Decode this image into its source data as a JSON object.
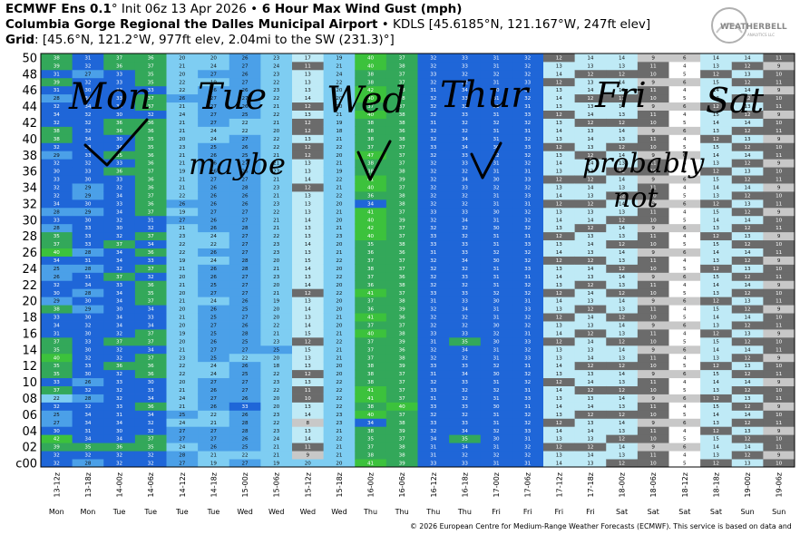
{
  "header": {
    "line1_model": "ECMWF Ens 0.1",
    "line1_deg": "°",
    "line1_init": " Init 06z 13 Apr 2026 ",
    "line1_sep": "•",
    "line1_product": " 6 Hour Max Wind Gust (mph)",
    "line2_site": "Columbia Gorge Regional the Dalles Municipal Airport",
    "line2_rest": " • KDLS [45.6185°N, 121.167°W, 247ft elev]",
    "line3_label": "Grid",
    "line3_rest": ": [45.6°N, 121.2°W, 977ft elev, 2.04mi to the SW (231.3)°]"
  },
  "logo": {
    "text1": "WEATHERBELL",
    "text2": "ANALYTICS LLC"
  },
  "footer": "© 2026 European Centre for Medium-Range Weather Forecasts (ECMWF). This service is based on data and",
  "annotations": {
    "days": [
      "Mon",
      "Tue",
      "Wed",
      "Thur",
      "Fri",
      "Sat"
    ],
    "notes": [
      "maybe",
      "probably",
      "not"
    ]
  },
  "colors": {
    "white": "#ffffff",
    "light_gray": "#c8c8c8",
    "dark_gray": "#6b6b6b",
    "very_light_blue": "#bfeaf6",
    "light_blue": "#7ecdf2",
    "blue": "#4ba0e8",
    "strong_blue": "#1f66d8",
    "green": "#33a85a",
    "bright_green": "#3cc23c",
    "ink": "#000000"
  },
  "chart_data": {
    "type": "heatmap",
    "y_ticks": [
      "50",
      "48",
      "46",
      "44",
      "42",
      "40",
      "38",
      "36",
      "34",
      "32",
      "30",
      "28",
      "26",
      "24",
      "22",
      "20",
      "18",
      "16",
      "14",
      "12",
      "10",
      "08",
      "06",
      "04",
      "02",
      "c00"
    ],
    "x_times": [
      "13-12z",
      "13-18z",
      "14-00z",
      "14-06z",
      "14-12z",
      "14-18z",
      "15-00z",
      "15-06z",
      "15-12z",
      "15-18z",
      "16-00z",
      "16-06z",
      "16-12z",
      "16-18z",
      "17-00z",
      "17-06z",
      "17-12z",
      "17-18z",
      "18-00z",
      "18-06z",
      "18-12z",
      "18-18z",
      "19-00z",
      "19-06z"
    ],
    "x_days": [
      "Mon",
      "Mon",
      "Tue",
      "Tue",
      "Tue",
      "Tue",
      "Wed",
      "Wed",
      "Wed",
      "Wed",
      "Thu",
      "Thu",
      "Thu",
      "Thu",
      "Fri",
      "Fri",
      "Fri",
      "Fri",
      "Sat",
      "Sat",
      "Sat",
      "Sat",
      "Sun",
      "Sun"
    ],
    "members": 51,
    "rows_note": "Rows are ensemble members c00 (bottom) to 50 (top); values in mph as printed in each cell.",
    "values_by_time": [
      [
        32,
        32,
        39,
        42,
        30,
        27,
        25,
        32,
        22,
        37,
        33,
        35,
        35,
        40,
        35,
        37,
        31,
        34,
        33,
        38,
        29,
        30,
        32,
        26,
        25,
        34,
        40,
        37,
        35,
        28,
        33,
        28,
        34,
        32,
        32,
        33,
        30,
        32,
        29,
        32,
        38,
        38,
        32,
        34,
        32,
        28,
        31,
        39,
        31,
        39,
        38
      ],
      [
        28,
        32,
        35,
        34,
        31,
        34,
        34,
        32,
        28,
        32,
        26,
        30,
        33,
        32,
        30,
        33,
        30,
        32,
        30,
        29,
        30,
        28,
        34,
        31,
        28,
        31,
        28,
        33,
        33,
        33,
        30,
        29,
        30,
        29,
        29,
        30,
        33,
        32,
        33,
        33,
        34,
        32,
        32,
        32,
        34,
        34,
        30,
        32,
        27,
        32,
        31
      ],
      [
        32,
        32,
        36,
        34,
        30,
        34,
        31,
        33,
        32,
        32,
        33,
        32,
        36,
        32,
        32,
        37,
        32,
        34,
        34,
        30,
        34,
        34,
        33,
        37,
        32,
        34,
        34,
        37,
        32,
        30,
        32,
        34,
        33,
        34,
        32,
        33,
        36,
        33,
        35,
        34,
        30,
        36,
        36,
        30,
        34,
        33,
        33,
        33,
        33,
        36,
        37
      ],
      [
        32,
        32,
        35,
        37,
        32,
        32,
        34,
        36,
        34,
        33,
        30,
        36,
        36,
        37,
        34,
        37,
        37,
        34,
        33,
        34,
        37,
        35,
        36,
        32,
        37,
        33,
        36,
        34,
        37,
        32,
        31,
        37,
        36,
        37,
        36,
        36,
        37,
        36,
        36,
        35,
        35,
        36,
        36,
        32,
        37,
        37,
        33,
        35,
        35,
        37,
        36
      ],
      [
        27,
        28,
        24,
        27,
        27,
        24,
        25,
        21,
        24,
        21,
        20,
        22,
        22,
        23,
        21,
        20,
        19,
        20,
        21,
        20,
        21,
        20,
        21,
        20,
        21,
        19,
        22,
        22,
        23,
        21,
        27,
        19,
        26,
        22,
        21,
        21,
        19,
        21,
        21,
        23,
        20,
        21,
        21,
        24,
        21,
        26,
        22,
        22,
        20,
        21,
        20
      ],
      [
        19,
        21,
        26,
        27,
        27,
        21,
        22,
        26,
        27,
        26,
        27,
        24,
        24,
        25,
        27,
        26,
        25,
        27,
        25,
        26,
        24,
        27,
        25,
        26,
        26,
        24,
        26,
        22,
        24,
        26,
        26,
        27,
        26,
        26,
        26,
        27,
        26,
        26,
        26,
        25,
        24,
        24,
        27,
        27,
        27,
        27,
        26,
        19,
        27,
        24,
        20
      ],
      [
        27,
        22,
        25,
        26,
        28,
        28,
        26,
        33,
        26,
        27,
        27,
        25,
        26,
        22,
        27,
        25,
        28,
        26,
        27,
        25,
        26,
        27,
        27,
        27,
        28,
        28,
        27,
        27,
        27,
        28,
        27,
        27,
        26,
        26,
        28,
        27,
        26,
        27,
        25,
        26,
        27,
        22,
        22,
        25,
        26,
        27,
        26,
        27,
        26,
        27,
        26
      ],
      [
        19,
        21,
        21,
        24,
        23,
        22,
        23,
        20,
        20,
        22,
        23,
        22,
        18,
        20,
        25,
        23,
        21,
        22,
        20,
        20,
        19,
        21,
        20,
        23,
        21,
        20,
        23,
        23,
        22,
        21,
        21,
        22,
        23,
        21,
        23,
        21,
        23,
        21,
        21,
        22,
        22,
        20,
        21,
        22,
        21,
        22,
        23,
        22,
        23,
        24,
        23
      ],
      [
        20,
        9,
        11,
        14,
        13,
        8,
        14,
        13,
        10,
        11,
        13,
        12,
        13,
        13,
        15,
        12,
        15,
        14,
        13,
        14,
        13,
        12,
        14,
        13,
        14,
        15,
        13,
        14,
        13,
        13,
        14,
        13,
        13,
        13,
        12,
        14,
        13,
        13,
        12,
        12,
        13,
        12,
        12,
        13,
        12,
        14,
        13,
        13,
        13,
        11,
        17
      ],
      [
        20,
        21,
        21,
        22,
        21,
        23,
        23,
        22,
        22,
        22,
        22,
        20,
        20,
        21,
        21,
        22,
        21,
        20,
        21,
        20,
        20,
        22,
        20,
        22,
        20,
        22,
        21,
        20,
        23,
        21,
        20,
        21,
        20,
        22,
        21,
        22,
        19,
        21,
        20,
        22,
        21,
        18,
        19,
        21,
        20,
        20,
        20,
        22,
        24,
        21,
        19
      ],
      [
        41,
        38,
        37,
        35,
        38,
        34,
        40,
        38,
        41,
        41,
        38,
        38,
        38,
        37,
        37,
        37,
        40,
        37,
        41,
        36,
        37,
        41,
        36,
        37,
        38,
        37,
        36,
        35,
        40,
        42,
        40,
        41,
        34,
        36,
        40,
        41,
        38,
        38,
        47,
        37,
        38,
        38,
        38,
        40,
        37,
        40,
        42,
        38,
        38,
        40,
        40
      ],
      [
        39,
        38,
        38,
        37,
        39,
        38,
        37,
        40,
        37,
        37,
        37,
        37,
        39,
        38,
        36,
        39,
        38,
        37,
        36,
        39,
        38,
        37,
        38,
        36,
        37,
        37,
        36,
        38,
        37,
        37,
        39,
        37,
        38,
        38,
        37,
        39,
        38,
        37,
        37,
        37,
        38,
        36,
        38,
        38,
        37,
        38,
        38,
        37,
        37,
        38,
        37
      ],
      [
        33,
        31,
        31,
        34,
        32,
        33,
        32,
        33,
        31,
        33,
        32,
        31,
        33,
        32,
        32,
        31,
        33,
        32,
        32,
        32,
        31,
        33,
        32,
        32,
        32,
        32,
        31,
        33,
        33,
        32,
        32,
        33,
        32,
        32,
        32,
        32,
        32,
        32,
        32,
        33,
        32,
        32,
        31,
        32,
        32,
        32,
        31,
        32,
        33,
        32,
        32
      ],
      [
        33,
        32,
        34,
        35,
        34,
        33,
        32,
        33,
        32,
        32,
        33,
        34,
        33,
        32,
        34,
        35,
        33,
        32,
        32,
        34,
        33,
        33,
        32,
        33,
        32,
        34,
        33,
        33,
        32,
        32,
        34,
        33,
        32,
        32,
        33,
        34,
        32,
        33,
        33,
        34,
        34,
        32,
        32,
        33,
        32,
        33,
        34,
        32,
        32,
        33,
        33
      ],
      [
        31,
        32,
        31,
        30,
        32,
        31,
        31,
        30,
        31,
        32,
        31,
        30,
        32,
        31,
        31,
        30,
        32,
        30,
        31,
        31,
        30,
        32,
        31,
        31,
        31,
        30,
        32,
        31,
        31,
        30,
        31,
        30,
        31,
        31,
        32,
        30,
        31,
        31,
        32,
        30,
        31,
        31,
        32,
        31,
        31,
        31,
        30,
        31,
        32,
        31,
        31
      ],
      [
        31,
        32,
        32,
        31,
        33,
        32,
        32,
        31,
        33,
        31,
        32,
        32,
        31,
        33,
        32,
        33,
        31,
        32,
        32,
        33,
        31,
        32,
        32,
        31,
        33,
        32,
        32,
        33,
        31,
        32,
        32,
        32,
        31,
        33,
        32,
        33,
        31,
        32,
        32,
        33,
        32,
        31,
        32,
        33,
        31,
        32,
        32,
        33,
        32,
        32,
        32
      ],
      [
        14,
        13,
        12,
        13,
        14,
        12,
        13,
        14,
        13,
        14,
        12,
        13,
        14,
        13,
        13,
        12,
        14,
        13,
        12,
        13,
        14,
        12,
        13,
        14,
        13,
        12,
        14,
        13,
        12,
        13,
        14,
        13,
        12,
        14,
        13,
        12,
        13,
        14,
        13,
        12,
        13,
        14,
        13,
        12,
        13,
        14,
        13,
        12,
        14,
        13,
        12
      ],
      [
        13,
        14,
        12,
        13,
        14,
        13,
        12,
        14,
        13,
        12,
        14,
        13,
        12,
        14,
        13,
        14,
        12,
        13,
        14,
        12,
        13,
        14,
        12,
        13,
        14,
        12,
        13,
        14,
        13,
        12,
        14,
        13,
        12,
        13,
        14,
        12,
        13,
        14,
        12,
        13,
        14,
        13,
        12,
        14,
        13,
        12,
        14,
        13,
        12,
        13,
        14
      ],
      [
        12,
        13,
        14,
        12,
        13,
        14,
        12,
        13,
        14,
        12,
        13,
        14,
        12,
        13,
        14,
        12,
        13,
        14,
        12,
        13,
        14,
        12,
        13,
        14,
        12,
        13,
        14,
        12,
        13,
        14,
        12,
        13,
        14,
        12,
        13,
        14,
        12,
        13,
        14,
        12,
        13,
        14,
        12,
        13,
        14,
        12,
        13,
        14,
        12,
        13,
        14
      ],
      [
        10,
        11,
        9,
        10,
        11,
        9,
        10,
        11,
        9,
        10,
        11,
        9,
        10,
        11,
        9,
        10,
        11,
        9,
        10,
        11,
        9,
        10,
        11,
        9,
        10,
        11,
        9,
        10,
        11,
        9,
        10,
        11,
        9,
        10,
        11,
        9,
        10,
        11,
        9,
        10,
        11,
        9,
        10,
        11,
        9,
        10,
        11,
        9,
        10,
        11,
        9
      ],
      [
        5,
        4,
        6,
        5,
        4,
        6,
        5,
        4,
        6,
        5,
        4,
        6,
        5,
        4,
        6,
        5,
        4,
        6,
        5,
        4,
        6,
        5,
        4,
        6,
        5,
        4,
        6,
        5,
        4,
        6,
        5,
        4,
        6,
        5,
        4,
        6,
        5,
        4,
        6,
        5,
        4,
        6,
        5,
        4,
        6,
        5,
        4,
        6,
        5,
        4,
        6
      ],
      [
        12,
        13,
        14,
        15,
        12,
        13,
        14,
        15,
        12,
        13,
        14,
        15,
        12,
        13,
        14,
        15,
        12,
        13,
        14,
        15,
        12,
        13,
        14,
        15,
        12,
        13,
        14,
        15,
        12,
        13,
        14,
        15,
        12,
        13,
        14,
        15,
        12,
        13,
        14,
        15,
        12,
        13,
        14,
        15,
        12,
        13,
        14,
        15,
        12,
        13,
        14
      ],
      [
        13,
        12,
        14,
        12,
        13,
        12,
        14,
        12,
        13,
        12,
        14,
        12,
        13,
        12,
        14,
        12,
        13,
        12,
        14,
        12,
        13,
        12,
        14,
        12,
        13,
        12,
        14,
        12,
        13,
        12,
        14,
        12,
        13,
        12,
        14,
        12,
        13,
        12,
        14,
        12,
        13,
        12,
        14,
        12,
        13,
        12,
        14,
        12,
        13,
        12,
        14
      ],
      [
        10,
        9,
        11,
        10,
        9,
        11,
        10,
        9,
        11,
        10,
        9,
        11,
        10,
        9,
        11,
        10,
        9,
        11,
        10,
        9,
        11,
        10,
        9,
        11,
        10,
        9,
        11,
        10,
        9,
        11,
        10,
        9,
        11,
        10,
        9,
        11,
        10,
        9,
        11,
        10,
        9,
        11,
        10,
        9,
        11,
        10,
        9,
        11,
        10,
        9,
        11
      ]
    ]
  }
}
